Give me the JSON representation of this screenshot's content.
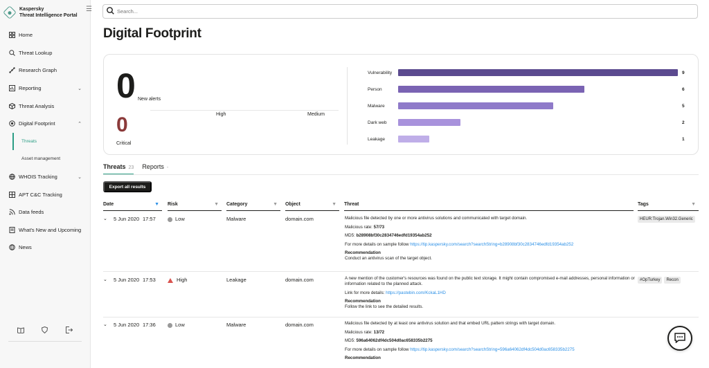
{
  "brand": {
    "line1": "Kaspersky",
    "line2": "Threat Intelligence Portal"
  },
  "nav": {
    "home": "Home",
    "threat_lookup": "Threat Lookup",
    "research_graph": "Research Graph",
    "reporting": "Reporting",
    "threat_analysis": "Threat Analysis",
    "digital_footprint": "Digital Footprint",
    "threats": "Threats",
    "asset_management": "Asset management",
    "whois": "WHOIS Tracking",
    "apt": "APT C&C Tracking",
    "data_feeds": "Data feeds",
    "whats_new": "What's New and Upcoming",
    "news": "News"
  },
  "search": {
    "placeholder": "Search..."
  },
  "page_title": "Digital Footprint",
  "summary": {
    "new_alerts_count": "0",
    "new_alerts_label": "New alerts",
    "critical_count": "0",
    "critical_label": "Critical",
    "high_label": "High",
    "medium_label": "Medium",
    "bars": [
      {
        "label": "Vulnerability",
        "value": 9,
        "color": "#5b4a8f"
      },
      {
        "label": "Person",
        "value": 6,
        "color": "#7a63b3"
      },
      {
        "label": "Malware",
        "value": 5,
        "color": "#8f7ac9"
      },
      {
        "label": "Dark web",
        "value": 2,
        "color": "#a892dc"
      },
      {
        "label": "Leakage",
        "value": 1,
        "color": "#bfaee8"
      }
    ]
  },
  "tabs": {
    "threats": "Threats",
    "threats_count": "23",
    "reports": "Reports",
    "reports_count": "-"
  },
  "export_label": "Export all results",
  "columns": {
    "date": "Date",
    "risk": "Risk",
    "category": "Category",
    "object": "Object",
    "threat": "Threat",
    "tags": "Tags"
  },
  "rows": [
    {
      "date": "5 Jun 2020",
      "time": "17:57",
      "risk": "Low",
      "category": "Malware",
      "object": "domain.com",
      "desc": "Malicious file detected by one or more antivirus solutions and communicated with target domain.",
      "rate_label": "Malicious rate:",
      "rate": "57/73",
      "md5_label": "MD5:",
      "md5": "b28908bf30c2834746edfd19354ab252",
      "more_label": "For more details on sample follow",
      "link": "https://tip.kaspersky.com/search?searchString=b28908bf30c2834746edfd19354ab252",
      "rec_title": "Recommendation",
      "rec": "Conduct an antivirus scan of the target object.",
      "tags": [
        "HEUR:Trojan.Win32.Generic"
      ]
    },
    {
      "date": "5 Jun 2020",
      "time": "17:53",
      "risk": "High",
      "category": "Leakage",
      "object": "domain.com",
      "desc": "A new mention of the customer's resources was found on the public text storage. It might contain compromised e-mail addresses, personal information or information related to the planned attack.",
      "more_label": "Link for more details:",
      "link": "https://pastebin.com/KckaL1HD",
      "rec_title": "Recommendation",
      "rec": "Follow the link to see the detailed results.",
      "tags": [
        "#OpTurkey",
        "Recon"
      ]
    },
    {
      "date": "5 Jun 2020",
      "time": "17:36",
      "risk": "Low",
      "category": "Malware",
      "object": "domain.com",
      "desc": "Malicious file detected by at least one antivirus solution and that embed URL pattern strings with target domain.",
      "rate_label": "Malicious rate:",
      "rate": "13/72",
      "md5_label": "MD5:",
      "md5": "596a64062df4dc504d0ac658335b2275",
      "more_label": "For more details on sample follow",
      "link": "https://tip.kaspersky.com/search?searchString=596a64062df4dc504d0ac658335b2275",
      "rec_title": "Recommendation"
    }
  ]
}
